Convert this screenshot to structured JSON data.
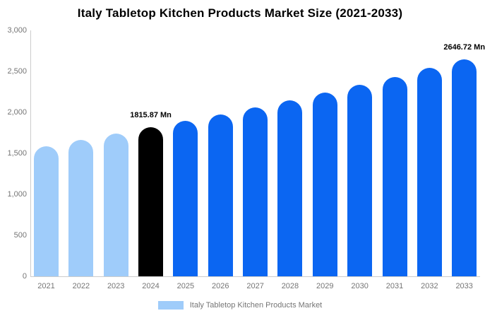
{
  "chart_data": {
    "type": "bar",
    "title": "Italy Tabletop Kitchen Products Market Size (2021-2033)",
    "categories": [
      "2021",
      "2022",
      "2023",
      "2024",
      "2025",
      "2026",
      "2027",
      "2028",
      "2029",
      "2030",
      "2031",
      "2032",
      "2033"
    ],
    "values": [
      1590,
      1668,
      1741,
      1815.87,
      1893,
      1974,
      2059,
      2147,
      2239,
      2335,
      2434,
      2539,
      2646.72
    ],
    "unit": "Mn",
    "ylim": [
      0,
      3000
    ],
    "yticks": [
      0,
      500,
      1000,
      1500,
      2000,
      2500,
      3000
    ],
    "ytick_labels": [
      "0",
      "500",
      "1,000",
      "1,500",
      "2,000",
      "2,500",
      "3,000"
    ],
    "xlabel": "",
    "ylabel": "",
    "grid": false,
    "bar_colors": [
      "#9fccfa",
      "#9fccfa",
      "#9fccfa",
      "#000000",
      "#0b66f2",
      "#0b66f2",
      "#0b66f2",
      "#0b66f2",
      "#0b66f2",
      "#0b66f2",
      "#0b66f2",
      "#0b66f2",
      "#0b66f2"
    ],
    "annotations": [
      {
        "category": "2024",
        "text": "1815.87 Mn"
      },
      {
        "category": "2033",
        "text": "2646.72 Mn"
      }
    ],
    "legend": {
      "label": "Italy Tabletop Kitchen Products Market",
      "swatch_color": "#9fccfa",
      "position": "bottom-center"
    },
    "colors": {
      "historic_bar": "#9fccfa",
      "base_year_bar": "#000000",
      "forecast_bar": "#0b66f2",
      "axis_line": "#cccccc",
      "tick_label": "#757575",
      "title": "#000000"
    }
  }
}
